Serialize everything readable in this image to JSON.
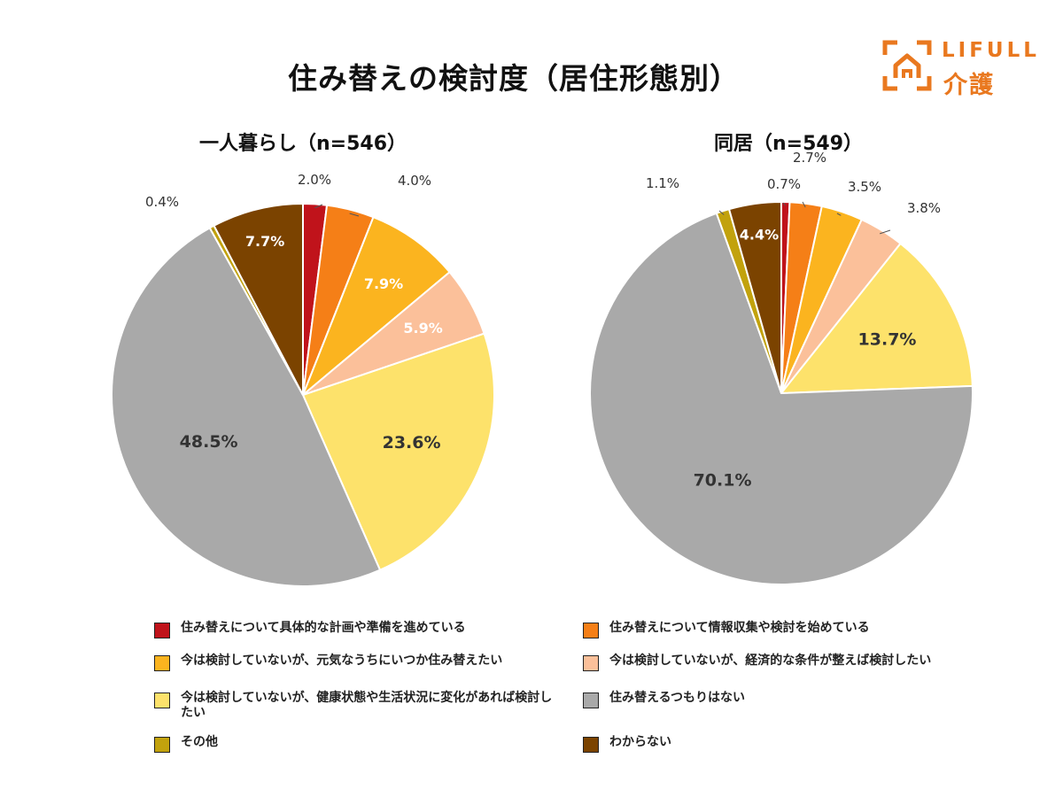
{
  "title": "住み替えの検討度（居住形態別）",
  "logo": {
    "word": "LIFULL",
    "sub": "介護"
  },
  "legend": [
    {
      "label": "住み替えについて具体的な計画や準備を進めている",
      "color": "#c0131b"
    },
    {
      "label": "住み替えについて情報収集や検討を始めている",
      "color": "#f57f17"
    },
    {
      "label": "今は検討していないが、元気なうちにいつか住み替えたい",
      "color": "#fbb41f"
    },
    {
      "label": "今は検討していないが、経済的な条件が整えば検討したい",
      "color": "#fbc09a"
    },
    {
      "label": "今は検討していないが、健康状態や生活状況に変化があれば検討したい",
      "color": "#fde26b"
    },
    {
      "label": "住み替えるつもりはない",
      "color": "#a9a9a9"
    },
    {
      "label": "その他",
      "color": "#c2a20d"
    },
    {
      "label": "わからない",
      "color": "#7b4300"
    }
  ],
  "chart_data": [
    {
      "type": "pie",
      "title": "一人暮らし（n=546）",
      "categories": [
        "住み替えについて具体的な計画や準備を進めている",
        "住み替えについて情報収集や検討を始めている",
        "今は検討していないが、元気なうちにいつか住み替えたい",
        "今は検討していないが、経済的な条件が整えば検討したい",
        "今は検討していないが、健康状態や生活状況に変化があれば検討したい",
        "住み替えるつもりはない",
        "その他",
        "わからない"
      ],
      "values": [
        2.0,
        4.0,
        7.9,
        5.9,
        23.6,
        48.5,
        0.4,
        7.7
      ],
      "labels": [
        "2.0%",
        "4.0%",
        "7.9%",
        "5.9%",
        "23.6%",
        "48.5%",
        "0.4%",
        "7.7%"
      ]
    },
    {
      "type": "pie",
      "title": "同居（n=549）",
      "categories": [
        "住み替えについて具体的な計画や準備を進めている",
        "住み替えについて情報収集や検討を始めている",
        "今は検討していないが、元気なうちにいつか住み替えたい",
        "今は検討していないが、経済的な条件が整えば検討したい",
        "今は検討していないが、健康状態や生活状況に変化があれば検討したい",
        "住み替えるつもりはない",
        "その他",
        "わからない"
      ],
      "values": [
        0.7,
        2.7,
        3.5,
        3.8,
        13.7,
        70.1,
        1.1,
        4.4
      ],
      "labels": [
        "0.7%",
        "2.7%",
        "3.5%",
        "3.8%",
        "13.7%",
        "70.1%",
        "1.1%",
        "4.4%"
      ]
    }
  ]
}
